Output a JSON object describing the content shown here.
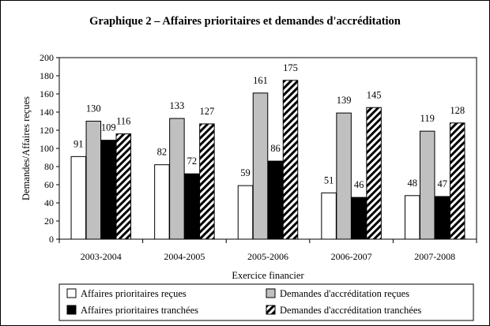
{
  "chart_data": {
    "type": "bar",
    "title": "Graphique 2 – Affaires prioritaires et demandes d'accréditation",
    "xlabel": "Exercice financier",
    "ylabel": "Demandes/Affaires reçues",
    "categories": [
      "2003-2004",
      "2004-2005",
      "2005-2006",
      "2006-2007",
      "2007-2008"
    ],
    "ylim": [
      0,
      200
    ],
    "yticks": [
      0,
      20,
      40,
      60,
      80,
      100,
      120,
      140,
      160,
      180,
      200
    ],
    "grid": false,
    "legend_position": "bottom",
    "series": [
      {
        "name": "Affaires prioritaires reçues",
        "values": [
          91,
          82,
          59,
          51,
          48
        ],
        "fill": "#ffffff",
        "pattern": "solid"
      },
      {
        "name": "Demandes d'accréditation reçues",
        "values": [
          130,
          133,
          161,
          139,
          119
        ],
        "fill": "#c0c0c0",
        "pattern": "solid"
      },
      {
        "name": "Affaires prioritaires tranchées",
        "values": [
          109,
          72,
          86,
          46,
          47
        ],
        "fill": "#000000",
        "pattern": "solid"
      },
      {
        "name": "Demandes d'accréditation tranchées",
        "values": [
          116,
          127,
          175,
          145,
          128
        ],
        "fill": "#000000",
        "pattern": "diagonal-stripes"
      }
    ]
  }
}
